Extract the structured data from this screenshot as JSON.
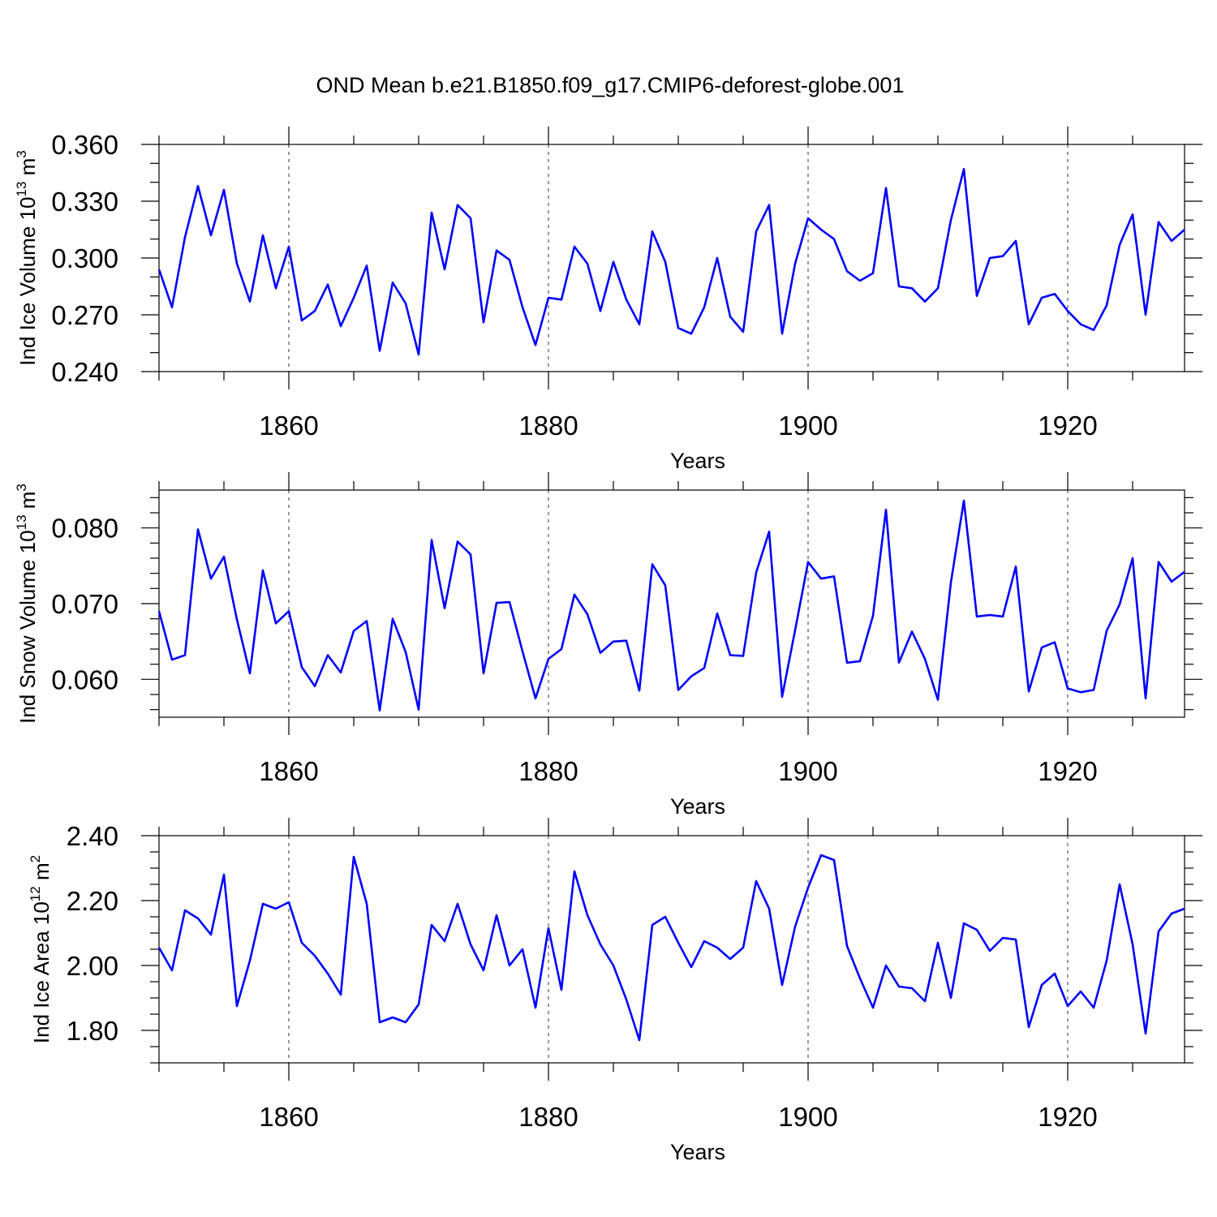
{
  "title": "OND Mean b.e21.B1850.f09_g17.CMIP6-deforest-globe.001",
  "colors": {
    "series": "#0000ff",
    "axes": "#000000",
    "grid": "#555555"
  },
  "chart_data": [
    {
      "type": "line",
      "ylabel": "Ind Ice Volume 10",
      "ylabel_sup": "13",
      "ylabel_unit": " m",
      "ylabel_unit_sup": "3",
      "xlabel": "Years",
      "xlim": [
        1850,
        1929
      ],
      "ylim": [
        0.24,
        0.36
      ],
      "yticks": [
        0.24,
        0.27,
        0.3,
        0.33,
        0.36
      ],
      "ytick_labels": [
        "0.240",
        "0.270",
        "0.300",
        "0.330",
        "0.360"
      ],
      "yminor_step": 0.01,
      "xticks": [
        1860,
        1880,
        1900,
        1920
      ],
      "xtick_labels": [
        "1860",
        "1880",
        "1900",
        "1920"
      ],
      "x_start": 1850,
      "series": [
        {
          "name": "Ind Ice Volume",
          "values": [
            0.294,
            0.274,
            0.311,
            0.338,
            0.312,
            0.336,
            0.297,
            0.277,
            0.312,
            0.284,
            0.306,
            0.267,
            0.272,
            0.286,
            0.264,
            0.279,
            0.296,
            0.251,
            0.287,
            0.276,
            0.249,
            0.324,
            0.294,
            0.328,
            0.321,
            0.266,
            0.304,
            0.299,
            0.274,
            0.254,
            0.279,
            0.278,
            0.306,
            0.297,
            0.272,
            0.298,
            0.278,
            0.265,
            0.314,
            0.298,
            0.263,
            0.26,
            0.274,
            0.3,
            0.269,
            0.261,
            0.314,
            0.328,
            0.26,
            0.297,
            0.321,
            0.315,
            0.31,
            0.293,
            0.288,
            0.292,
            0.337,
            0.285,
            0.284,
            0.277,
            0.284,
            0.32,
            0.347,
            0.28,
            0.3,
            0.301,
            0.309,
            0.265,
            0.279,
            0.281,
            0.272,
            0.265,
            0.262,
            0.275,
            0.307,
            0.323,
            0.27,
            0.319,
            0.309,
            0.315
          ]
        }
      ]
    },
    {
      "type": "line",
      "ylabel": "Ind Snow Volume 10",
      "ylabel_sup": "13",
      "ylabel_unit": " m",
      "ylabel_unit_sup": "3",
      "xlabel": "Years",
      "xlim": [
        1850,
        1929
      ],
      "ylim": [
        0.055,
        0.085
      ],
      "yticks": [
        0.06,
        0.07,
        0.08
      ],
      "ytick_labels": [
        "0.060",
        "0.070",
        "0.080"
      ],
      "yminor_step": 0.002,
      "xticks": [
        1860,
        1880,
        1900,
        1920
      ],
      "xtick_labels": [
        "1860",
        "1880",
        "1900",
        "1920"
      ],
      "x_start": 1850,
      "series": [
        {
          "name": "Ind Snow Volume",
          "values": [
            0.069,
            0.0626,
            0.0632,
            0.0798,
            0.0733,
            0.0762,
            0.0679,
            0.0608,
            0.0744,
            0.0674,
            0.069,
            0.0616,
            0.0591,
            0.0632,
            0.0609,
            0.0664,
            0.0677,
            0.0559,
            0.068,
            0.0636,
            0.056,
            0.0784,
            0.0694,
            0.0782,
            0.0765,
            0.0608,
            0.0701,
            0.0702,
            0.0637,
            0.0575,
            0.0627,
            0.064,
            0.0712,
            0.0686,
            0.0635,
            0.065,
            0.0651,
            0.0585,
            0.0752,
            0.0724,
            0.0586,
            0.0604,
            0.0615,
            0.0687,
            0.0632,
            0.0631,
            0.0741,
            0.0795,
            0.0577,
            0.0665,
            0.0755,
            0.0733,
            0.0736,
            0.0622,
            0.0624,
            0.0684,
            0.0824,
            0.0622,
            0.0663,
            0.0627,
            0.0573,
            0.0728,
            0.0836,
            0.0683,
            0.0685,
            0.0683,
            0.0749,
            0.0584,
            0.0642,
            0.0649,
            0.0588,
            0.0583,
            0.0586,
            0.0664,
            0.0699,
            0.076,
            0.0575,
            0.0755,
            0.0729,
            0.0742
          ]
        }
      ]
    },
    {
      "type": "line",
      "ylabel": "Ind Ice Area 10",
      "ylabel_sup": "12",
      "ylabel_unit": " m",
      "ylabel_unit_sup": "2",
      "xlabel": "Years",
      "xlim": [
        1850,
        1929
      ],
      "ylim": [
        1.7,
        2.4
      ],
      "yticks": [
        1.8,
        2.0,
        2.2,
        2.4
      ],
      "ytick_labels": [
        "1.80",
        "2.00",
        "2.20",
        "2.40"
      ],
      "yminor_step": 0.05,
      "xticks": [
        1860,
        1880,
        1900,
        1920
      ],
      "xtick_labels": [
        "1860",
        "1880",
        "1900",
        "1920"
      ],
      "x_start": 1850,
      "series": [
        {
          "name": "Ind Ice Area",
          "values": [
            2.055,
            1.985,
            2.17,
            2.145,
            2.095,
            2.28,
            1.875,
            2.015,
            2.19,
            2.175,
            2.195,
            2.07,
            2.03,
            1.975,
            1.91,
            2.335,
            2.19,
            1.825,
            1.84,
            1.825,
            1.88,
            2.125,
            2.075,
            2.19,
            2.065,
            1.985,
            2.155,
            2.0,
            2.05,
            1.87,
            2.115,
            1.925,
            2.29,
            2.155,
            2.065,
            2.0,
            1.895,
            1.77,
            2.125,
            2.15,
            2.07,
            1.995,
            2.075,
            2.055,
            2.02,
            2.055,
            2.26,
            2.175,
            1.94,
            2.12,
            2.24,
            2.34,
            2.325,
            2.06,
            1.96,
            1.87,
            2.0,
            1.935,
            1.93,
            1.89,
            2.07,
            1.9,
            2.13,
            2.11,
            2.045,
            2.085,
            2.08,
            1.81,
            1.94,
            1.975,
            1.875,
            1.92,
            1.87,
            2.015,
            2.25,
            2.065,
            1.79,
            2.105,
            2.16,
            2.175
          ]
        }
      ]
    }
  ]
}
